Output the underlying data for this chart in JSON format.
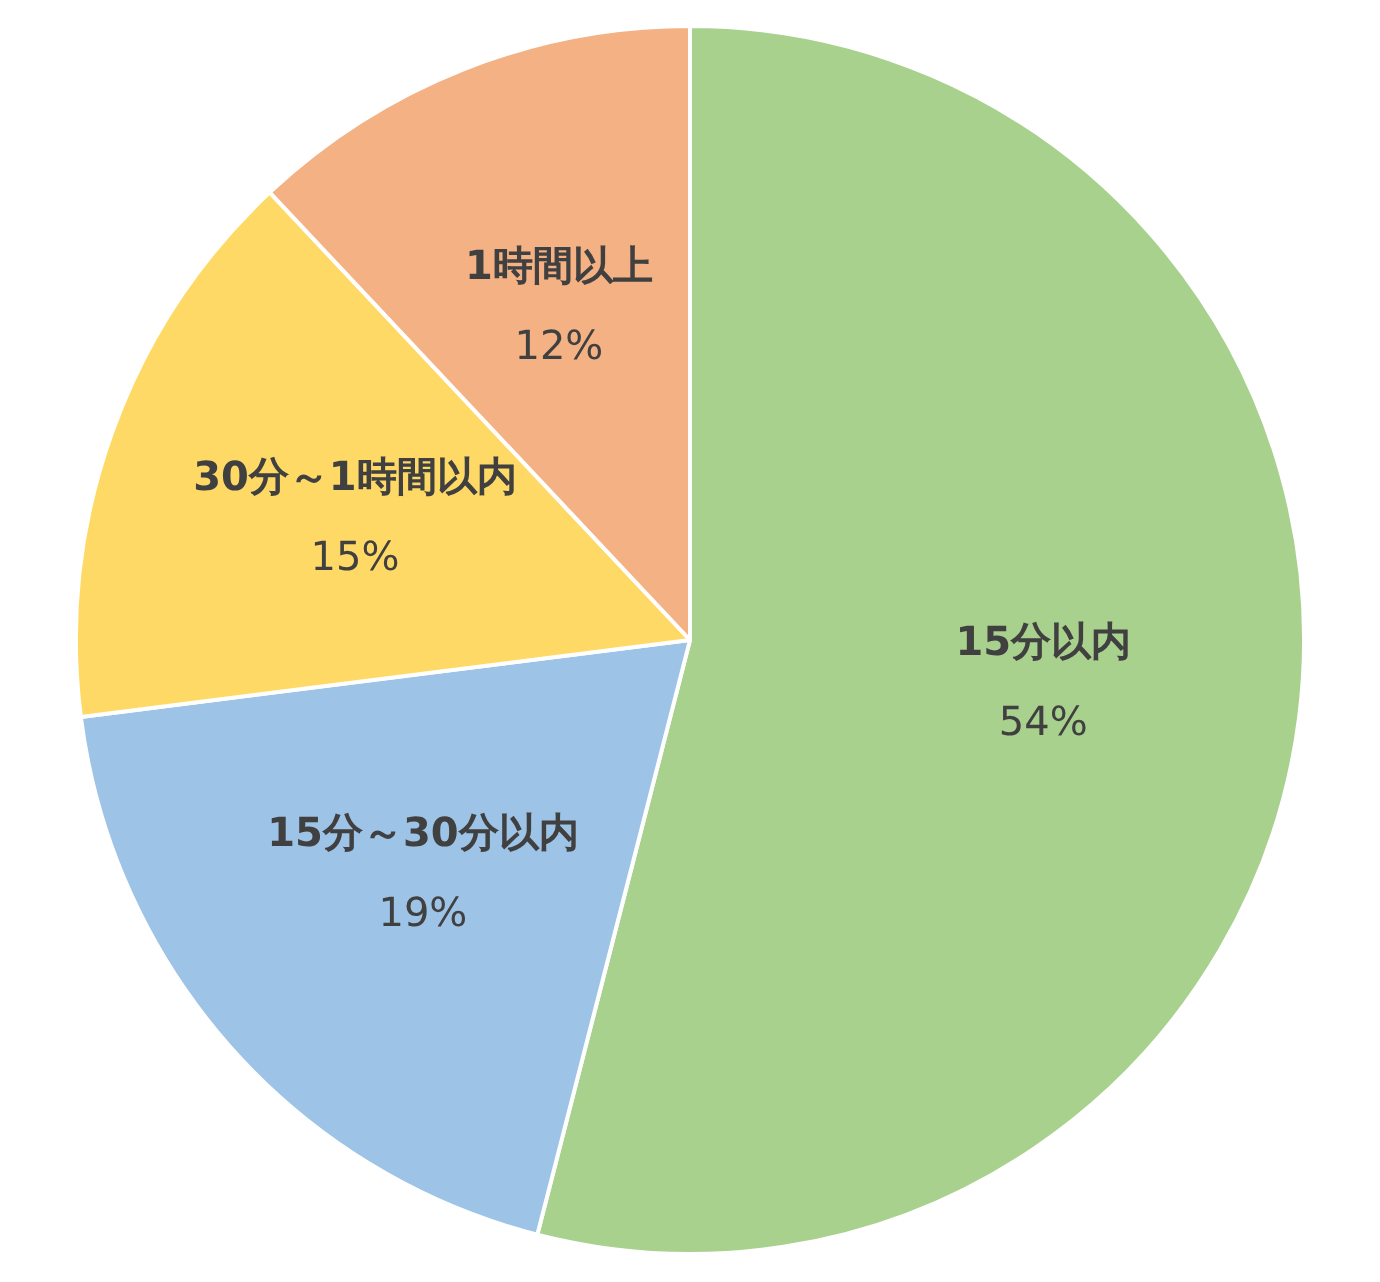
{
  "chart_data": {
    "type": "pie",
    "categories": [
      "15分以内",
      "15分～30分以内",
      "30分～1時間以内",
      "1時間以上"
    ],
    "values": [
      54,
      19,
      15,
      12
    ],
    "value_labels": [
      "54%",
      "19%",
      "15%",
      "12%"
    ],
    "colors": [
      "#a9d18e",
      "#9dc3e6",
      "#ffd966",
      "#f4b183"
    ]
  }
}
